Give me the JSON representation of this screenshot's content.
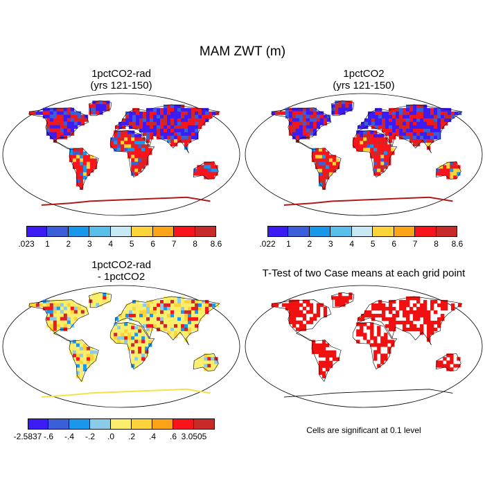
{
  "main_title": "MAM ZWT (m)",
  "panels": [
    {
      "title_line1": "1pctCO2-rad",
      "title_line2": "(yrs 121-150)",
      "map": "ZWT field, 1pctCO2-rad"
    },
    {
      "title_line1": "1pctCO2",
      "title_line2": "(yrs 121-150)",
      "map": "ZWT field, 1pctCO2"
    },
    {
      "title_line1": "1pctCO2-rad",
      "title_line2": "- 1pctCO2",
      "map": "ZWT difference field"
    },
    {
      "title_line1": "T-Test of two Case means at each grid point",
      "title_line2": "",
      "map": "significance mask"
    }
  ],
  "colorbars": {
    "zwt_rad": {
      "colors": [
        "#3b1cf5",
        "#3a5fd9",
        "#1a96ea",
        "#57bfe8",
        "#c8e8f4",
        "#fcd33a",
        "#fca418",
        "#f8141a",
        "#c82a2a"
      ],
      "labels": [
        ".023",
        "1",
        "2",
        "3",
        "4",
        "5",
        "6",
        "7",
        "8",
        "8.6"
      ]
    },
    "zwt": {
      "colors": [
        "#3b1cf5",
        "#3a5fd9",
        "#1a96ea",
        "#57bfe8",
        "#c8e8f4",
        "#fcd33a",
        "#fca418",
        "#f8141a",
        "#c82a2a"
      ],
      "labels": [
        ".022",
        "1",
        "2",
        "3",
        "4",
        "5",
        "6",
        "7",
        "8",
        "8.6"
      ]
    },
    "diff": {
      "colors": [
        "#3b1cf5",
        "#3a5fd9",
        "#1a96ea",
        "#8ccbe8",
        "#fbee6a",
        "#fcd33a",
        "#fca418",
        "#f8141a",
        "#c82a2a"
      ],
      "labels": [
        "-2.5837",
        "-.6",
        "-.4",
        "-.2",
        ".0",
        ".2",
        ".4",
        ".6",
        "3.0505"
      ]
    }
  },
  "significance_note": "Cells are significant at 0.1 level",
  "significance_color": "#f01010"
}
